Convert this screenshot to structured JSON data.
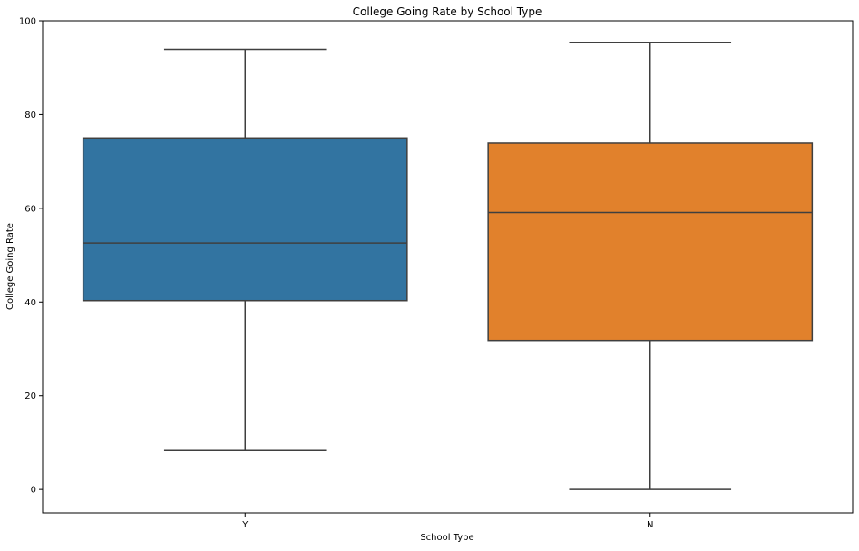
{
  "chart_data": {
    "type": "box",
    "title": "College Going Rate by School Type",
    "xlabel": "School Type",
    "ylabel": "College Going Rate",
    "ylim": [
      -5,
      100
    ],
    "yticks": [
      0,
      20,
      40,
      60,
      80,
      100
    ],
    "grid": false,
    "categories": [
      "Y",
      "N"
    ],
    "boxes": [
      {
        "category": "Y",
        "whisker_low": 8.3,
        "q1": 40.3,
        "median": 52.6,
        "q3": 75.0,
        "whisker_high": 93.9,
        "color": "#3274a1"
      },
      {
        "category": "N",
        "whisker_low": 0.0,
        "q1": 31.8,
        "median": 59.1,
        "q3": 73.9,
        "whisker_high": 95.4,
        "color": "#e1812c"
      }
    ]
  }
}
